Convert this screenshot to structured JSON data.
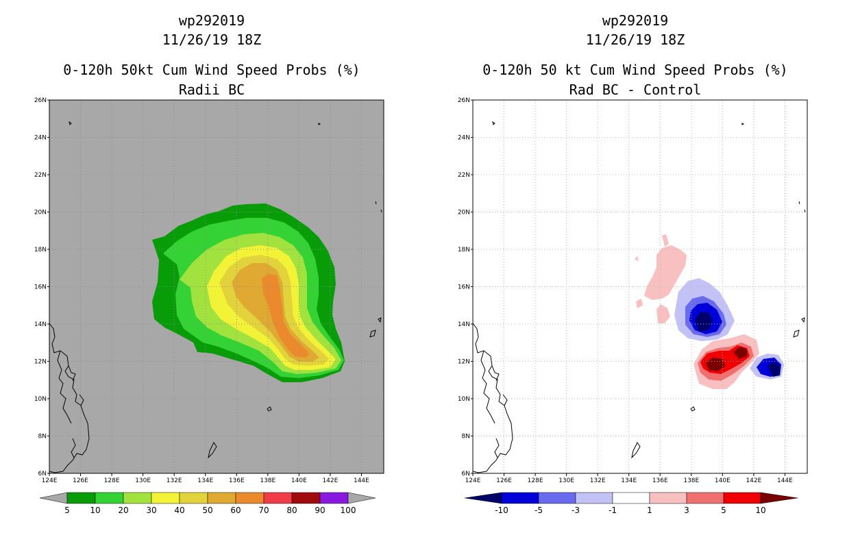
{
  "panels": [
    {
      "storm_id": "wp292019",
      "datetime": "11/26/19 18Z",
      "product": "0-120h 50kt Cum Wind Speed Probs (%)",
      "subtitle": "Radii BC",
      "background_color": "#a8a8a8",
      "colorbar_labels": [
        "5",
        "10",
        "20",
        "30",
        "40",
        "50",
        "60",
        "70",
        "80",
        "90",
        "100"
      ],
      "colorbar_colors": [
        "#089c08",
        "#34d234",
        "#a2e23e",
        "#f2f236",
        "#e2d23c",
        "#e0aa32",
        "#ea8a2c",
        "#f03c46",
        "#a00a0a",
        "#8a18e0"
      ]
    },
    {
      "storm_id": "wp292019",
      "datetime": "11/26/19 18Z",
      "product": "0-120h 50 kt Cum Wind Speed Probs (%)",
      "subtitle": "Rad BC - Control",
      "background_color": "#ffffff",
      "colorbar_labels": [
        "-10",
        "-5",
        "-3",
        "-1",
        "1",
        "3",
        "5",
        "10"
      ],
      "colorbar_colors": [
        "#0000d8",
        "#6a6aee",
        "#c2c2f6",
        "#ffffff",
        "#f8c0c0",
        "#f07070",
        "#f00000"
      ],
      "colorbar_end_colors": [
        "#00006a",
        "#7a0000"
      ]
    }
  ],
  "map": {
    "lon_labels": [
      "124E",
      "126E",
      "128E",
      "130E",
      "132E",
      "134E",
      "136E",
      "138E",
      "140E",
      "142E",
      "144E"
    ],
    "lat_labels": [
      "6N",
      "8N",
      "10N",
      "12N",
      "14N",
      "16N",
      "18N",
      "20N",
      "22N",
      "24N",
      "26N"
    ]
  }
}
